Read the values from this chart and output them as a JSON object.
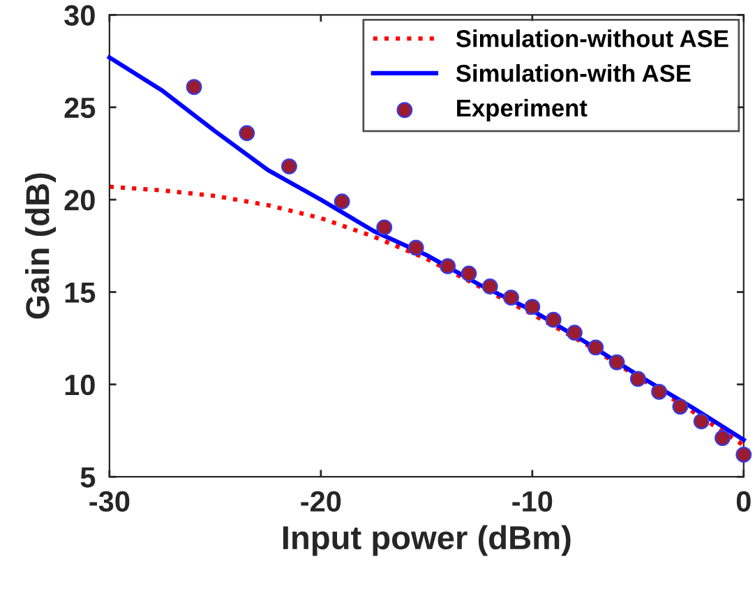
{
  "chart_data": {
    "type": "line",
    "xlabel": "Input power (dBm)",
    "ylabel": "Gain (dB)",
    "xlim": [
      -30,
      0
    ],
    "xticks": [
      -30,
      -20,
      -10,
      0
    ],
    "ylim": [
      5,
      30
    ],
    "yticks": [
      5,
      10,
      15,
      20,
      25,
      30
    ],
    "grid": false,
    "legend": "top right",
    "series": [
      {
        "name": "Simulation-without ASE",
        "color": "#ff0000",
        "line_style": "dotted",
        "marker": "none",
        "x": [
          -30,
          -27.5,
          -25,
          -22.5,
          -20,
          -17.5,
          -15,
          -12.5,
          -10,
          -7.5,
          -5,
          -2.5,
          0
        ],
        "values": [
          20.7,
          20.5,
          20.2,
          19.7,
          19.0,
          18.0,
          16.8,
          15.3,
          13.8,
          12.2,
          10.4,
          8.6,
          6.7
        ]
      },
      {
        "name": "Simulation-with ASE",
        "color": "#0000ff",
        "line_style": "solid",
        "marker": "none",
        "x": [
          -30,
          -27.5,
          -25,
          -22.5,
          -20,
          -17.5,
          -15,
          -12.5,
          -10,
          -7.5,
          -5,
          -2.5,
          0
        ],
        "values": [
          27.7,
          25.9,
          23.7,
          21.6,
          20.0,
          18.3,
          17.0,
          15.4,
          14.0,
          12.3,
          10.5,
          8.8,
          7.0
        ]
      },
      {
        "name": "Experiment",
        "type": "scatter",
        "color": "#9b1b30",
        "marker": "circle",
        "x": [
          -26,
          -23.5,
          -21.5,
          -19,
          -17,
          -15.5,
          -14,
          -13,
          -12,
          -11,
          -10,
          -9,
          -8,
          -7,
          -6,
          -5,
          -4,
          -3,
          -2,
          -1,
          0
        ],
        "values": [
          26.1,
          23.6,
          21.8,
          19.9,
          18.5,
          17.4,
          16.4,
          16.0,
          15.3,
          14.7,
          14.2,
          13.5,
          12.8,
          12.0,
          11.2,
          10.3,
          9.6,
          8.8,
          8.0,
          7.1,
          6.2
        ]
      }
    ]
  }
}
